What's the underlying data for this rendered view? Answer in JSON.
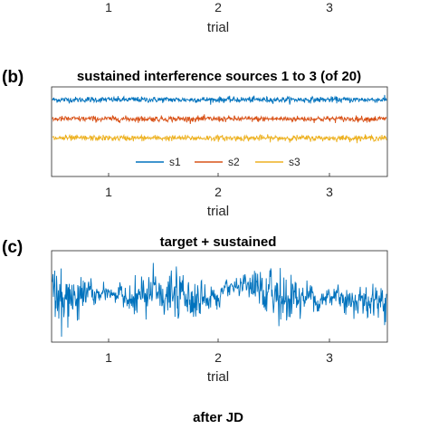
{
  "chart_data": [
    {
      "type": "line",
      "panel_label": "",
      "title": "",
      "xlabel": "trial",
      "x_ticks": [
        "1",
        "2",
        "3"
      ],
      "x_tick_values": [
        1,
        2,
        3
      ],
      "xlim": [
        0.5,
        3.5
      ],
      "series": []
    },
    {
      "type": "line",
      "panel_label": "(b)",
      "title": "sustained interference sources 1 to 3 (of 20)",
      "xlabel": "trial",
      "x_ticks": [
        "1",
        "2",
        "3"
      ],
      "x_tick_values": [
        1,
        2,
        3
      ],
      "xlim": [
        0.5,
        3.5
      ],
      "ylim": [
        -6,
        1
      ],
      "legend": {
        "placement": "bottom-center",
        "orientation": "horizontal"
      },
      "series": [
        {
          "name": "s1",
          "color": "#0072BD",
          "offset": 0,
          "amplitude": 0.25
        },
        {
          "name": "s2",
          "color": "#D95319",
          "offset": -1.5,
          "amplitude": 0.25
        },
        {
          "name": "s3",
          "color": "#EDB120",
          "offset": -3,
          "amplitude": 0.25
        }
      ]
    },
    {
      "type": "line",
      "panel_label": "(c)",
      "title": "target + sustained",
      "xlabel": "trial",
      "x_ticks": [
        "1",
        "2",
        "3"
      ],
      "x_tick_values": [
        1,
        2,
        3
      ],
      "xlim": [
        0.5,
        3.5
      ],
      "ylim": [
        -1,
        1
      ],
      "series": [
        {
          "name": "",
          "color": "#0072BD",
          "offset": 0,
          "amplitude": 0.55
        }
      ]
    },
    {
      "type": "line",
      "panel_label": "",
      "title": "after JD",
      "series": []
    }
  ]
}
